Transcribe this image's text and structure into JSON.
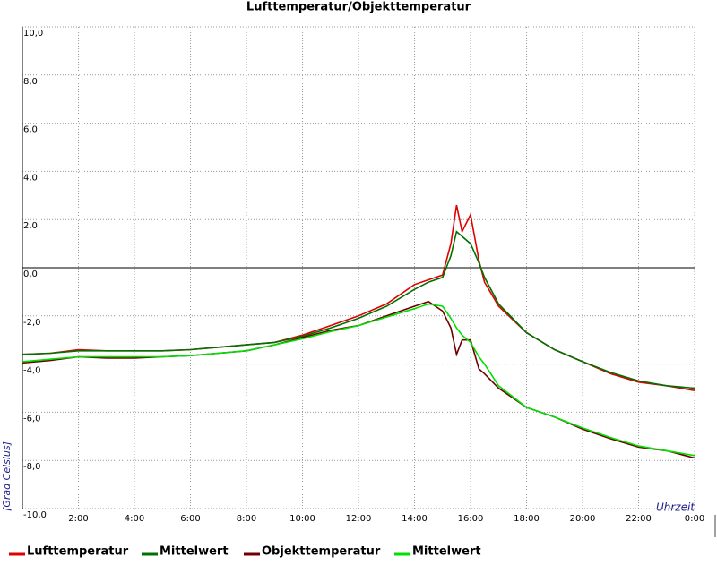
{
  "chart_data": {
    "type": "line",
    "title": "Lufttemperatur/Objekttemperatur",
    "y_label": "[Grad Celsius]",
    "x_label": "Uhrzeit",
    "xlim": [
      0,
      24
    ],
    "ylim": [
      -10,
      10
    ],
    "grid": true,
    "xticks": [
      {
        "value": 2,
        "label": "2:00"
      },
      {
        "value": 4,
        "label": "4:00"
      },
      {
        "value": 6,
        "label": "6:00"
      },
      {
        "value": 8,
        "label": "8:00"
      },
      {
        "value": 10,
        "label": "10:00"
      },
      {
        "value": 12,
        "label": "12:00"
      },
      {
        "value": 14,
        "label": "14:00"
      },
      {
        "value": 16,
        "label": "16:00"
      },
      {
        "value": 18,
        "label": "18:00"
      },
      {
        "value": 20,
        "label": "20:00"
      },
      {
        "value": 22,
        "label": "22:00"
      },
      {
        "value": 24,
        "label": "0:00"
      }
    ],
    "yticks": [
      {
        "value": -10,
        "label": "-10,0"
      },
      {
        "value": -8,
        "label": "-8,0"
      },
      {
        "value": -6,
        "label": "-6,0"
      },
      {
        "value": -4,
        "label": "-4,0"
      },
      {
        "value": -2,
        "label": "-2,0"
      },
      {
        "value": 0,
        "label": "0,0"
      },
      {
        "value": 2,
        "label": "2,0"
      },
      {
        "value": 4,
        "label": "4,0"
      },
      {
        "value": 6,
        "label": "6,0"
      },
      {
        "value": 8,
        "label": "8,0"
      },
      {
        "value": 10,
        "label": "10,0"
      }
    ],
    "x": [
      0,
      1,
      2,
      3,
      4,
      5,
      6,
      7,
      8,
      9,
      10,
      11,
      12,
      13,
      14,
      14.5,
      15,
      15.3,
      15.5,
      15.7,
      16,
      16.3,
      16.5,
      17,
      18,
      19,
      20,
      21,
      22,
      23,
      24
    ],
    "series": [
      {
        "name": "Lufttemperatur",
        "color": "#e00000",
        "values": [
          -3.6,
          -3.55,
          -3.4,
          -3.45,
          -3.45,
          -3.45,
          -3.4,
          -3.3,
          -3.2,
          -3.1,
          -2.8,
          -2.4,
          -2.0,
          -1.5,
          -0.7,
          -0.5,
          -0.3,
          1.0,
          2.6,
          1.5,
          2.2,
          0.3,
          -0.6,
          -1.6,
          -2.7,
          -3.4,
          -3.9,
          -4.4,
          -4.75,
          -4.9,
          -5.1
        ]
      },
      {
        "name": "Mittelwert",
        "color": "#007000",
        "values": [
          -3.6,
          -3.55,
          -3.45,
          -3.45,
          -3.45,
          -3.45,
          -3.4,
          -3.3,
          -3.2,
          -3.1,
          -2.85,
          -2.5,
          -2.1,
          -1.6,
          -0.9,
          -0.6,
          -0.4,
          0.5,
          1.5,
          1.3,
          1.0,
          0.2,
          -0.4,
          -1.5,
          -2.7,
          -3.4,
          -3.9,
          -4.35,
          -4.7,
          -4.9,
          -5.0
        ]
      },
      {
        "name": "Objekttemperatur",
        "color": "#700000",
        "values": [
          -3.95,
          -3.85,
          -3.7,
          -3.75,
          -3.75,
          -3.7,
          -3.65,
          -3.55,
          -3.45,
          -3.2,
          -2.9,
          -2.6,
          -2.4,
          -2.0,
          -1.6,
          -1.4,
          -1.8,
          -2.5,
          -3.6,
          -3.0,
          -3.0,
          -4.2,
          -4.4,
          -5.0,
          -5.8,
          -6.2,
          -6.7,
          -7.1,
          -7.45,
          -7.6,
          -7.9
        ]
      },
      {
        "name": "Mittelwert",
        "color": "#00e000",
        "values": [
          -3.9,
          -3.8,
          -3.7,
          -3.7,
          -3.7,
          -3.7,
          -3.65,
          -3.55,
          -3.45,
          -3.2,
          -2.95,
          -2.65,
          -2.4,
          -2.05,
          -1.7,
          -1.5,
          -1.6,
          -2.1,
          -2.5,
          -2.8,
          -3.1,
          -3.7,
          -4.0,
          -4.9,
          -5.8,
          -6.2,
          -6.65,
          -7.05,
          -7.4,
          -7.6,
          -7.8
        ]
      }
    ]
  }
}
